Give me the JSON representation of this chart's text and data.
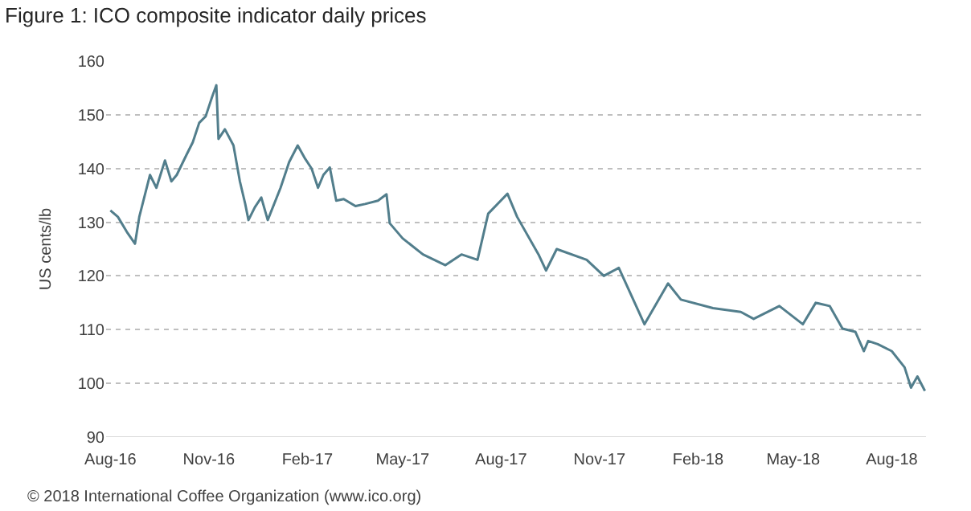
{
  "chart_data": {
    "type": "line",
    "title": "Figure 1: ICO composite indicator daily prices",
    "ylabel": "US cents/lb",
    "annotations": [
      "© 2018 International Coffee Organization (www.ico.org)"
    ],
    "x": [
      "2016-08-01",
      "2016-08-08",
      "2016-08-17",
      "2016-08-24",
      "2016-08-28",
      "2016-09-07",
      "2016-09-13",
      "2016-09-21",
      "2016-09-27",
      "2016-10-02",
      "2016-10-11",
      "2016-10-17",
      "2016-10-23",
      "2016-10-29",
      "2016-11-04",
      "2016-11-08",
      "2016-11-10",
      "2016-11-16",
      "2016-11-24",
      "2016-11-30",
      "2016-12-05",
      "2016-12-08",
      "2016-12-14",
      "2016-12-20",
      "2016-12-26",
      "2017-01-07",
      "2017-01-15",
      "2017-01-23",
      "2017-01-30",
      "2017-02-05",
      "2017-02-11",
      "2017-02-16",
      "2017-02-22",
      "2017-02-28",
      "2017-03-07",
      "2017-03-18",
      "2017-03-27",
      "2017-04-08",
      "2017-04-16",
      "2017-04-19",
      "2017-05-01",
      "2017-05-20",
      "2017-06-10",
      "2017-06-25",
      "2017-07-10",
      "2017-07-20",
      "2017-08-07",
      "2017-08-16",
      "2017-09-05",
      "2017-09-12",
      "2017-09-22",
      "2017-10-20",
      "2017-11-05",
      "2017-11-19",
      "2017-12-13",
      "2018-01-04",
      "2018-01-16",
      "2018-02-15",
      "2018-03-13",
      "2018-03-25",
      "2018-04-18",
      "2018-05-10",
      "2018-05-22",
      "2018-06-04",
      "2018-06-16",
      "2018-06-28",
      "2018-07-06",
      "2018-07-10",
      "2018-07-19",
      "2018-08-01",
      "2018-08-13",
      "2018-08-19",
      "2018-08-25",
      "2018-09-01"
    ],
    "series": [
      {
        "color": "#527e8c",
        "values": [
          132.2,
          131,
          128,
          126,
          131,
          138.8,
          136.4,
          141.5,
          137.6,
          138.8,
          142.5,
          144.9,
          148.5,
          149.7,
          153.3,
          155.5,
          145.5,
          147.3,
          144.3,
          137.6,
          133.4,
          130.4,
          132.8,
          134.6,
          130.4,
          136.4,
          141.2,
          144.3,
          141.8,
          140,
          136.4,
          138.8,
          140.2,
          134,
          134.3,
          133,
          133.4,
          134,
          135.2,
          129.8,
          127,
          124,
          122,
          124,
          123,
          131.6,
          135.3,
          131,
          124,
          121,
          125,
          123,
          120,
          121.5,
          111,
          118.6,
          115.6,
          114,
          113.3,
          112,
          114.4,
          111,
          115,
          114.4,
          110.2,
          109.6,
          106,
          107.9,
          107.3,
          106,
          103,
          99.2,
          101.3,
          98.6
        ]
      }
    ],
    "xlim": [
      "2016-07-28",
      "2018-09-02"
    ],
    "xticks": [
      {
        "value": "2016-08-01",
        "label": "Aug-16"
      },
      {
        "value": "2016-11-01",
        "label": "Nov-16"
      },
      {
        "value": "2017-02-01",
        "label": "Feb-17"
      },
      {
        "value": "2017-05-01",
        "label": "May-17"
      },
      {
        "value": "2017-08-01",
        "label": "Aug-17"
      },
      {
        "value": "2017-11-01",
        "label": "Nov-17"
      },
      {
        "value": "2018-02-01",
        "label": "Feb-18"
      },
      {
        "value": "2018-05-01",
        "label": "May-18"
      },
      {
        "value": "2018-08-01",
        "label": "Aug-18"
      }
    ],
    "ylim": [
      90,
      160
    ],
    "yticks": [
      90,
      100,
      110,
      120,
      130,
      140,
      150,
      160
    ],
    "grid": "y",
    "marker": "none",
    "line_style": "solid"
  }
}
